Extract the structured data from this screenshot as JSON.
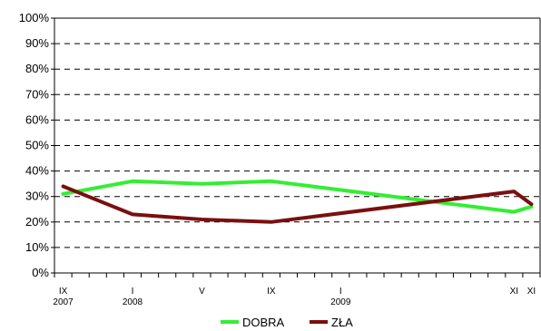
{
  "chart_data": {
    "type": "line",
    "title": "",
    "ylim": [
      0,
      100
    ],
    "y_ticks": [
      "0%",
      "10%",
      "20%",
      "30%",
      "40%",
      "50%",
      "60%",
      "70%",
      "80%",
      "90%",
      "100%"
    ],
    "x_labels": [
      {
        "i": 0,
        "l1": "IX",
        "l2": "2007"
      },
      {
        "i": 4,
        "l1": "I",
        "l2": "2008"
      },
      {
        "i": 8,
        "l1": "V",
        "l2": ""
      },
      {
        "i": 12,
        "l1": "IX",
        "l2": ""
      },
      {
        "i": 16,
        "l1": "I",
        "l2": "2009"
      },
      {
        "i": 26,
        "l1": "XI",
        "l2": ""
      },
      {
        "i": 27,
        "l1": "XI",
        "l2": ""
      }
    ],
    "grid": "horizontal dashed",
    "legend_position": "bottom",
    "series": [
      {
        "name": "DOBRA",
        "color": "#33ee33",
        "points": [
          [
            0,
            31
          ],
          [
            4,
            36
          ],
          [
            8,
            35
          ],
          [
            12,
            36
          ],
          [
            26,
            24
          ],
          [
            27,
            26
          ]
        ]
      },
      {
        "name": "ZŁA",
        "color": "#7a0f0f",
        "points": [
          [
            0,
            34
          ],
          [
            4,
            23
          ],
          [
            8,
            21
          ],
          [
            12,
            20
          ],
          [
            26,
            32
          ],
          [
            27,
            27
          ]
        ]
      }
    ]
  }
}
